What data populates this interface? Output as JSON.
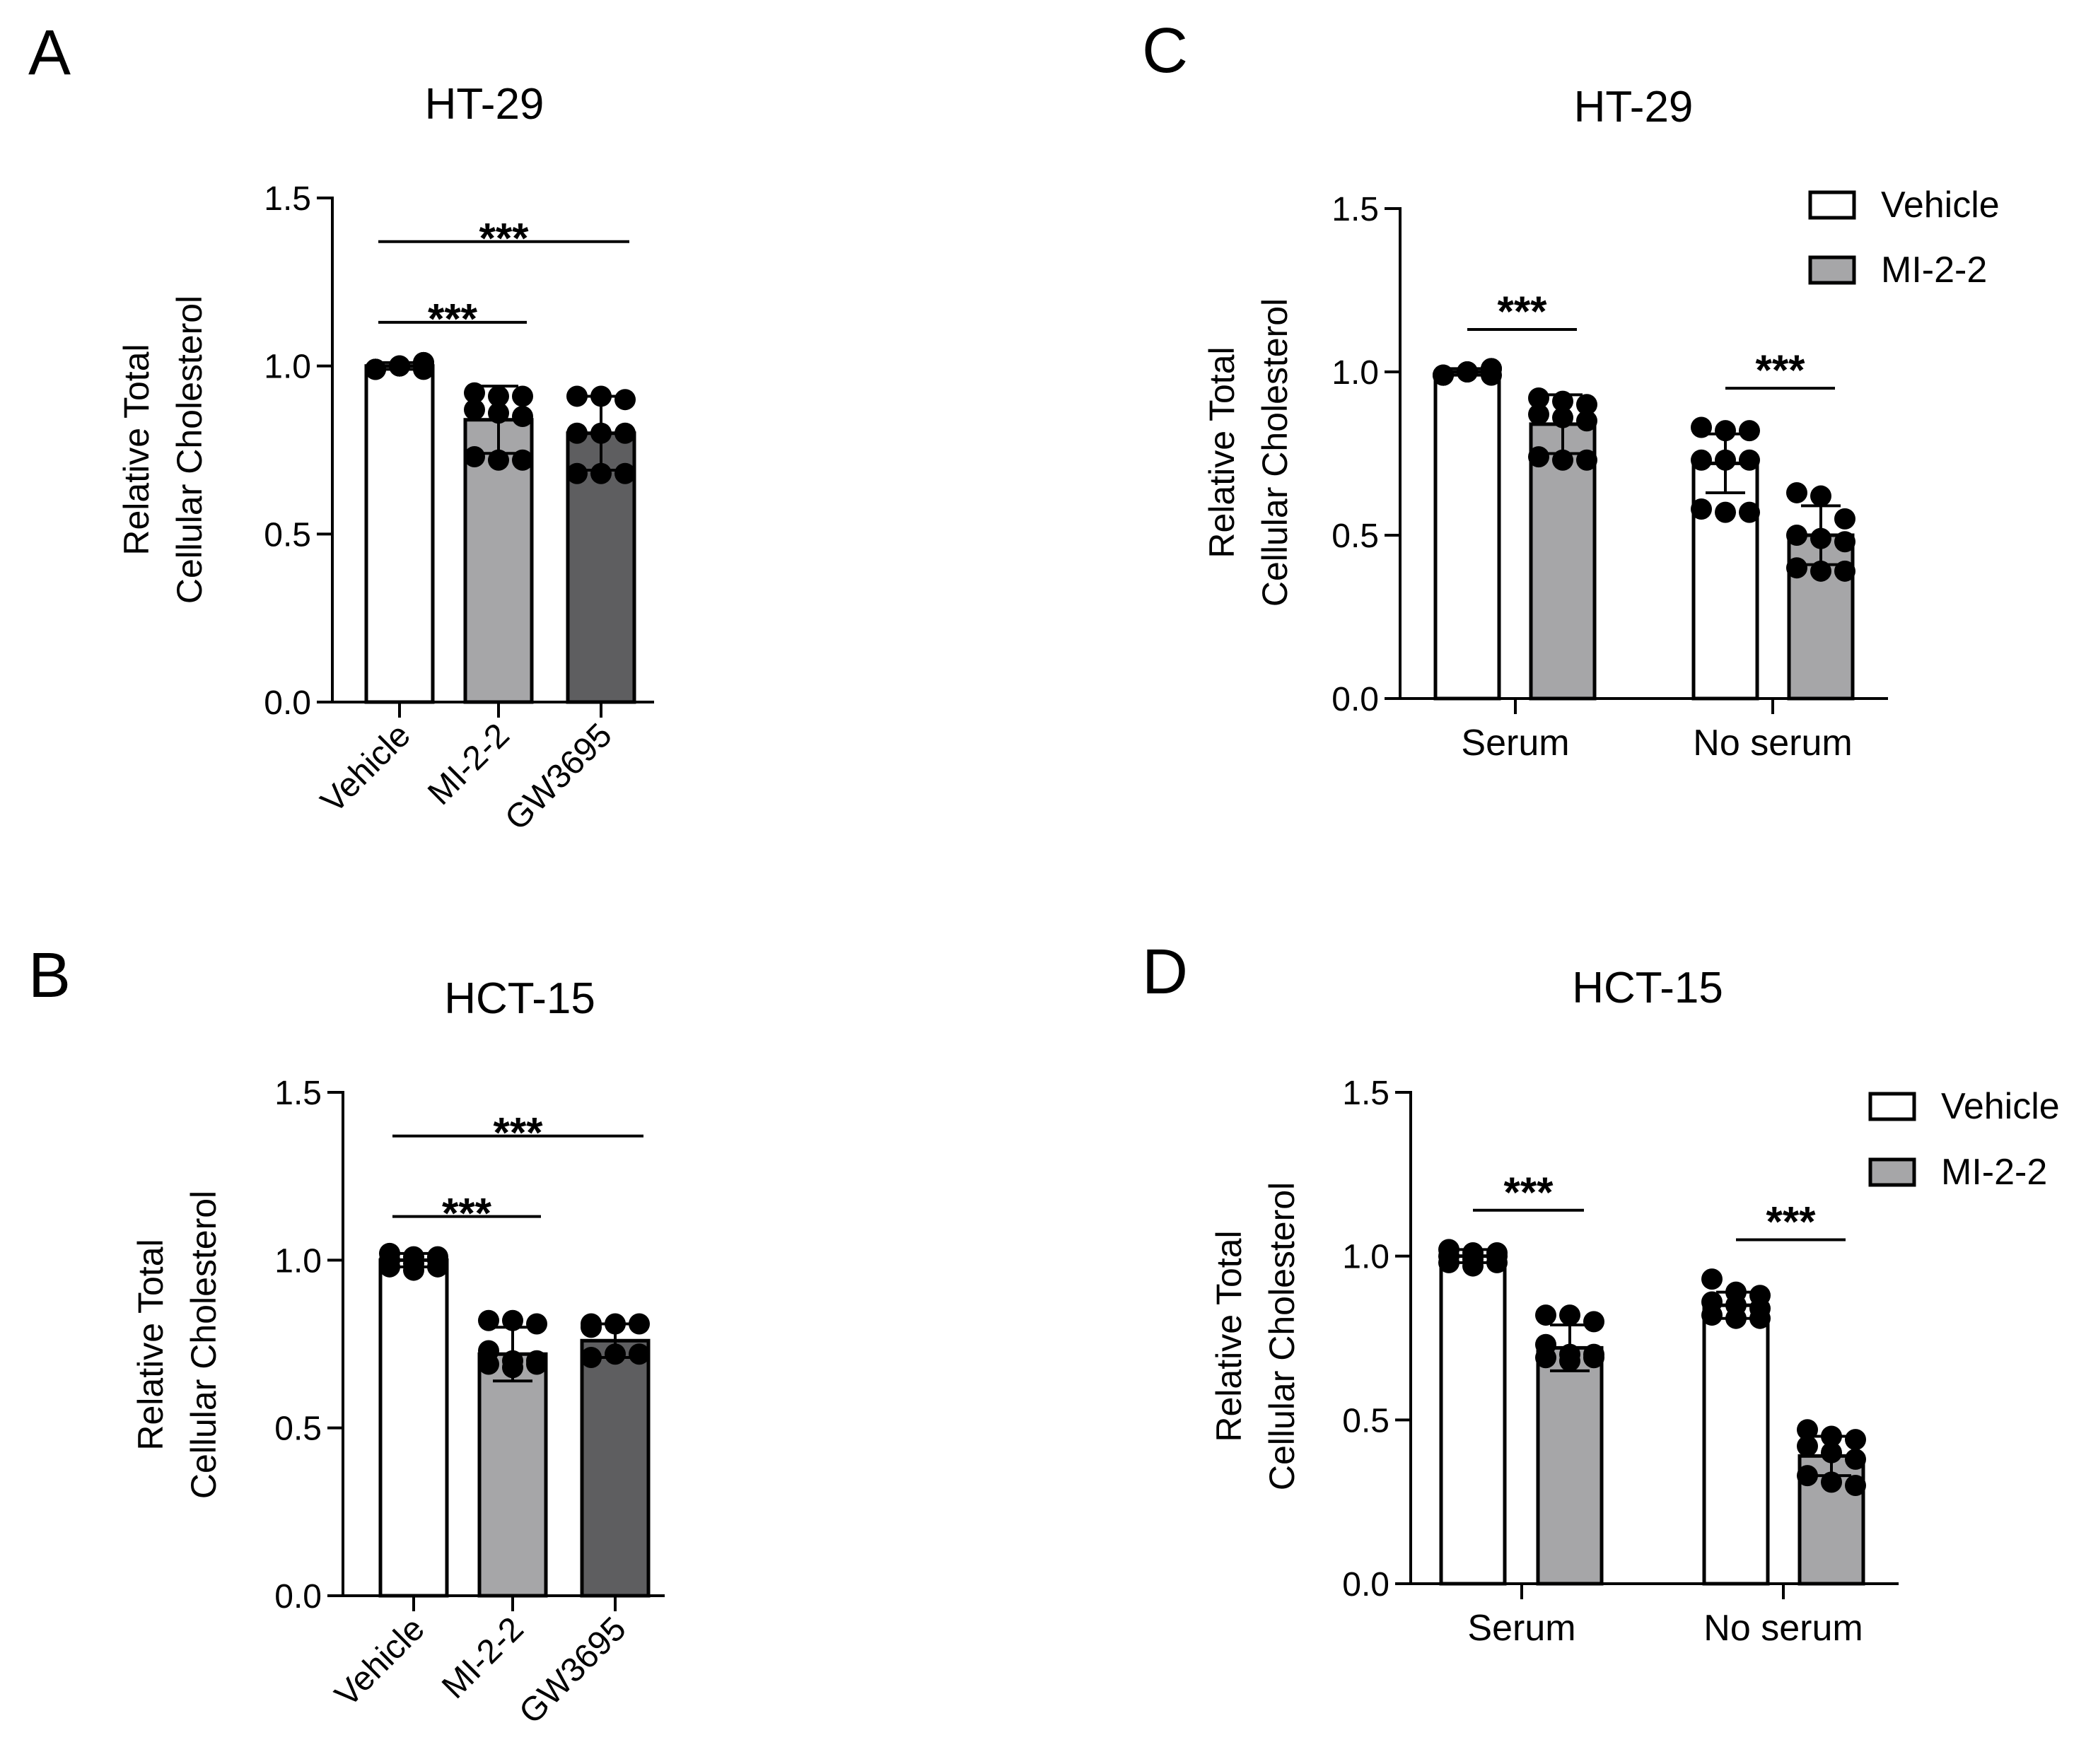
{
  "colors": {
    "vehicle": "#ffffff",
    "mi22": "#a6a6a8",
    "gw3695": "#5e5e60",
    "ink": "#000000"
  },
  "chart_data": [
    {
      "panel": "A",
      "type": "bar",
      "title": "HT-29",
      "ylabel_line1": "Relative Total",
      "ylabel_line2": "Cellular Cholesterol",
      "ylim": [
        0,
        1.5
      ],
      "yticks": [
        "0.0",
        "0.5",
        "1.0",
        "1.5"
      ],
      "categories": [
        "Vehicle",
        "MI-2-2",
        "GW3695"
      ],
      "bars": [
        {
          "name": "Vehicle",
          "value": 1.0,
          "err": 0.01,
          "color_key": "vehicle",
          "points": [
            0.99,
            1.0,
            1.01,
            0.99,
            1.0,
            1.01,
            0.99,
            1.0,
            0.99
          ]
        },
        {
          "name": "MI-2-2",
          "value": 0.84,
          "err": 0.1,
          "color_key": "mi22",
          "points": [
            0.92,
            0.91,
            0.91,
            0.87,
            0.86,
            0.85,
            0.73,
            0.72,
            0.72
          ]
        },
        {
          "name": "GW3695",
          "value": 0.8,
          "err": 0.11,
          "color_key": "gw3695",
          "points": [
            0.91,
            0.91,
            0.9,
            0.8,
            0.8,
            0.8,
            0.68,
            0.68,
            0.68
          ]
        }
      ],
      "significance": [
        {
          "from": 0,
          "to": 1,
          "label": "***"
        },
        {
          "from": 0,
          "to": 2,
          "label": "***"
        }
      ]
    },
    {
      "panel": "B",
      "type": "bar",
      "title": "HCT-15",
      "ylabel_line1": "Relative Total",
      "ylabel_line2": "Cellular Cholesterol",
      "ylim": [
        0,
        1.5
      ],
      "yticks": [
        "0.0",
        "0.5",
        "1.0",
        "1.5"
      ],
      "categories": [
        "Vehicle",
        "MI-2-2",
        "GW3695"
      ],
      "bars": [
        {
          "name": "Vehicle",
          "value": 1.0,
          "err": 0.02,
          "color_key": "vehicle",
          "points": [
            1.02,
            1.01,
            1.01,
            1.0,
            0.99,
            0.98,
            0.98,
            0.97,
            1.0
          ]
        },
        {
          "name": "MI-2-2",
          "value": 0.72,
          "err": 0.08,
          "color_key": "mi22",
          "points": [
            0.82,
            0.82,
            0.81,
            0.73,
            0.7,
            0.7,
            0.69,
            0.68,
            0.69
          ]
        },
        {
          "name": "GW3695",
          "value": 0.76,
          "err": 0.05,
          "color_key": "gw3695",
          "points": [
            0.81,
            0.81,
            0.81,
            0.8,
            0.72,
            0.72,
            0.71
          ]
        }
      ],
      "significance": [
        {
          "from": 0,
          "to": 1,
          "label": "***"
        },
        {
          "from": 0,
          "to": 2,
          "label": "***"
        }
      ]
    },
    {
      "panel": "C",
      "type": "bar",
      "title": "HT-29",
      "ylabel_line1": "Relative Total",
      "ylabel_line2": "Cellular Cholesterol",
      "ylim": [
        0,
        1.5
      ],
      "yticks": [
        "0.0",
        "0.5",
        "1.0",
        "1.5"
      ],
      "categories": [
        "Serum",
        "No serum"
      ],
      "legend": [
        {
          "label": "Vehicle",
          "color_key": "vehicle"
        },
        {
          "label": "MI-2-2",
          "color_key": "mi22"
        }
      ],
      "legend_position": "top-right",
      "groups": [
        {
          "category": "Serum",
          "bars": [
            {
              "series": "Vehicle",
              "value": 1.0,
              "err": 0.01,
              "points": [
                0.99,
                1.0,
                1.01,
                0.99,
                1.0,
                1.01,
                0.99,
                1.0,
                0.99
              ]
            },
            {
              "series": "MI-2-2",
              "value": 0.84,
              "err": 0.09,
              "points": [
                0.92,
                0.91,
                0.9,
                0.87,
                0.86,
                0.85,
                0.74,
                0.73,
                0.73
              ]
            }
          ],
          "significance": "***"
        },
        {
          "category": "No serum",
          "bars": [
            {
              "series": "Vehicle",
              "value": 0.72,
              "err": 0.09,
              "points": [
                0.83,
                0.82,
                0.82,
                0.73,
                0.73,
                0.73,
                0.58,
                0.57,
                0.57
              ]
            },
            {
              "series": "MI-2-2",
              "value": 0.5,
              "err": 0.09,
              "points": [
                0.63,
                0.62,
                0.55,
                0.5,
                0.49,
                0.48,
                0.4,
                0.39,
                0.39
              ]
            }
          ],
          "significance": "***"
        }
      ]
    },
    {
      "panel": "D",
      "type": "bar",
      "title": "HCT-15",
      "ylabel_line1": "Relative Total",
      "ylabel_line2": "Cellular Cholesterol",
      "ylim": [
        0,
        1.5
      ],
      "yticks": [
        "0.0",
        "0.5",
        "1.0",
        "1.5"
      ],
      "categories": [
        "Serum",
        "No serum"
      ],
      "legend": [
        {
          "label": "Vehicle",
          "color_key": "vehicle"
        },
        {
          "label": "MI-2-2",
          "color_key": "mi22"
        }
      ],
      "legend_position": "top-right",
      "groups": [
        {
          "category": "Serum",
          "bars": [
            {
              "series": "Vehicle",
              "value": 1.0,
              "err": 0.02,
              "points": [
                1.02,
                1.01,
                1.01,
                1.0,
                0.99,
                0.98,
                0.98,
                0.97,
                1.0
              ]
            },
            {
              "series": "MI-2-2",
              "value": 0.72,
              "err": 0.07,
              "points": [
                0.82,
                0.82,
                0.8,
                0.73,
                0.7,
                0.7,
                0.69,
                0.68,
                0.69
              ]
            }
          ],
          "significance": "***"
        },
        {
          "category": "No serum",
          "bars": [
            {
              "series": "Vehicle",
              "value": 0.85,
              "err": 0.04,
              "points": [
                0.93,
                0.89,
                0.88,
                0.86,
                0.85,
                0.84,
                0.82,
                0.81,
                0.81
              ]
            },
            {
              "series": "MI-2-2",
              "value": 0.39,
              "err": 0.06,
              "points": [
                0.47,
                0.45,
                0.44,
                0.42,
                0.4,
                0.38,
                0.33,
                0.31,
                0.3
              ]
            }
          ],
          "significance": "***"
        }
      ]
    }
  ]
}
